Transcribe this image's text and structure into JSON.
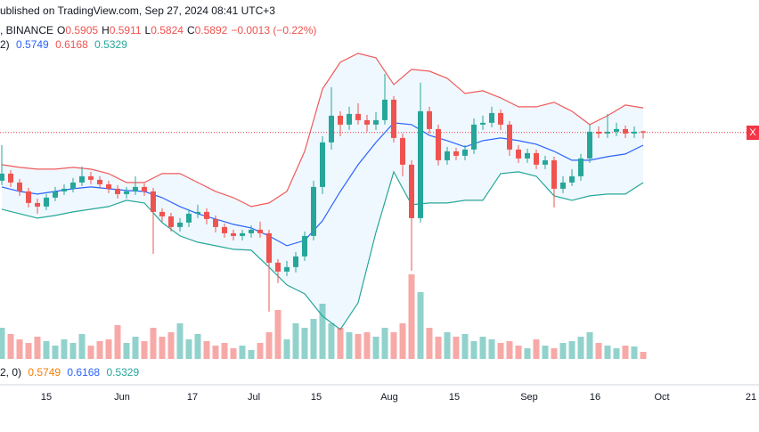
{
  "header": {
    "published": "ublished on TradingView.com, Sep 27, 2024 08:41 UTC+3",
    "symbol": ", BINANCE",
    "ohlc": [
      {
        "k": "O",
        "v": "0.5905"
      },
      {
        "k": "H",
        "v": "0.5911"
      },
      {
        "k": "L",
        "v": "0.5824"
      },
      {
        "k": "C",
        "v": "0.5892"
      }
    ],
    "change": "−0.0013 (−0.22%)",
    "bb_params": "2)",
    "bb_values": [
      "0.5749",
      "0.6168",
      "0.5329"
    ],
    "price_tag": "X"
  },
  "footer": {
    "params": "2, 0)",
    "values": [
      "0.5749",
      "0.6168",
      "0.5329"
    ]
  },
  "chart_data": {
    "type": "candlestick",
    "ylim": [
      0.3329,
      0.7379
    ],
    "last_price": 0.5892,
    "up_color": "#26a69a",
    "down_color": "#ef5350",
    "open": [
      0.535,
      0.543,
      0.533,
      0.523,
      0.51,
      0.506,
      0.516,
      0.523,
      0.526,
      0.533,
      0.54,
      0.536,
      0.531,
      0.526,
      0.52,
      0.523,
      0.528,
      0.523,
      0.5,
      0.495,
      0.483,
      0.488,
      0.498,
      0.5,
      0.492,
      0.483,
      0.476,
      0.473,
      0.476,
      0.48,
      0.476,
      0.443,
      0.433,
      0.438,
      0.45,
      0.473,
      0.528,
      0.578,
      0.608,
      0.598,
      0.61,
      0.603,
      0.598,
      0.603,
      0.626,
      0.583,
      0.553,
      0.493,
      0.613,
      0.593,
      0.558,
      0.568,
      0.563,
      0.57,
      0.598,
      0.6,
      0.611,
      0.598,
      0.57,
      0.56,
      0.566,
      0.553,
      0.558,
      0.526,
      0.533,
      0.54,
      0.56,
      0.59,
      0.588,
      0.59,
      0.593,
      0.588,
      0.5905
    ],
    "high": [
      0.575,
      0.547,
      0.537,
      0.527,
      0.515,
      0.52,
      0.528,
      0.531,
      0.538,
      0.551,
      0.545,
      0.54,
      0.535,
      0.53,
      0.528,
      0.54,
      0.532,
      0.527,
      0.504,
      0.499,
      0.493,
      0.503,
      0.508,
      0.504,
      0.496,
      0.487,
      0.48,
      0.48,
      0.485,
      0.489,
      0.48,
      0.447,
      0.445,
      0.455,
      0.478,
      0.535,
      0.585,
      0.64,
      0.613,
      0.618,
      0.622,
      0.609,
      0.612,
      0.655,
      0.63,
      0.588,
      0.558,
      0.645,
      0.618,
      0.598,
      0.573,
      0.572,
      0.575,
      0.605,
      0.608,
      0.618,
      0.615,
      0.602,
      0.575,
      0.571,
      0.57,
      0.563,
      0.562,
      0.54,
      0.548,
      0.565,
      0.598,
      0.596,
      0.61,
      0.6,
      0.597,
      0.596,
      0.5911
    ],
    "low": [
      0.53,
      0.528,
      0.518,
      0.505,
      0.498,
      0.502,
      0.512,
      0.519,
      0.522,
      0.529,
      0.531,
      0.526,
      0.521,
      0.515,
      0.515,
      0.519,
      0.518,
      0.453,
      0.489,
      0.478,
      0.478,
      0.483,
      0.493,
      0.486,
      0.477,
      0.471,
      0.468,
      0.468,
      0.471,
      0.471,
      0.388,
      0.42,
      0.428,
      0.432,
      0.445,
      0.468,
      0.52,
      0.57,
      0.585,
      0.592,
      0.598,
      0.59,
      0.592,
      0.598,
      0.578,
      0.54,
      0.434,
      0.488,
      0.588,
      0.552,
      0.553,
      0.558,
      0.558,
      0.565,
      0.592,
      0.595,
      0.592,
      0.563,
      0.555,
      0.555,
      0.548,
      0.548,
      0.505,
      0.521,
      0.529,
      0.535,
      0.555,
      0.583,
      0.583,
      0.585,
      0.583,
      0.583,
      0.5824
    ],
    "close": [
      0.543,
      0.533,
      0.523,
      0.51,
      0.506,
      0.516,
      0.523,
      0.526,
      0.533,
      0.54,
      0.536,
      0.531,
      0.526,
      0.52,
      0.523,
      0.528,
      0.523,
      0.5,
      0.495,
      0.483,
      0.488,
      0.498,
      0.5,
      0.492,
      0.483,
      0.476,
      0.473,
      0.476,
      0.48,
      0.476,
      0.443,
      0.433,
      0.438,
      0.45,
      0.473,
      0.528,
      0.578,
      0.608,
      0.598,
      0.61,
      0.603,
      0.598,
      0.603,
      0.626,
      0.583,
      0.553,
      0.493,
      0.613,
      0.593,
      0.558,
      0.568,
      0.563,
      0.57,
      0.598,
      0.6,
      0.611,
      0.598,
      0.57,
      0.56,
      0.566,
      0.553,
      0.558,
      0.526,
      0.533,
      0.54,
      0.56,
      0.59,
      0.588,
      0.59,
      0.593,
      0.588,
      0.59,
      0.5892
    ],
    "volume": [
      35,
      28,
      22,
      18,
      25,
      20,
      15,
      22,
      18,
      28,
      15,
      20,
      22,
      38,
      18,
      25,
      20,
      35,
      25,
      30,
      40,
      22,
      28,
      20,
      15,
      18,
      12,
      15,
      10,
      18,
      30,
      55,
      22,
      40,
      35,
      45,
      62,
      40,
      35,
      30,
      28,
      30,
      25,
      35,
      30,
      40,
      95,
      75,
      35,
      25,
      30,
      25,
      28,
      20,
      25,
      22,
      18,
      20,
      15,
      12,
      22,
      15,
      12,
      18,
      20,
      25,
      30,
      18,
      15,
      12,
      15,
      14,
      8
    ],
    "volume_lim": [
      0,
      400
    ],
    "bands": {
      "x": [
        0,
        2,
        4,
        6,
        8,
        10,
        12,
        14,
        16,
        18,
        20,
        22,
        24,
        26,
        28,
        30,
        32,
        34,
        36,
        38,
        40,
        42,
        44,
        46,
        48,
        50,
        52,
        54,
        56,
        58,
        60,
        62,
        64,
        66,
        68,
        70,
        72
      ],
      "series": [
        {
          "name": "upper",
          "color": "#f05a5a",
          "values": [
            0.553,
            0.55,
            0.548,
            0.548,
            0.55,
            0.548,
            0.543,
            0.533,
            0.533,
            0.543,
            0.543,
            0.533,
            0.523,
            0.516,
            0.506,
            0.51,
            0.523,
            0.568,
            0.638,
            0.668,
            0.678,
            0.673,
            0.643,
            0.66,
            0.658,
            0.65,
            0.633,
            0.636,
            0.628,
            0.618,
            0.618,
            0.623,
            0.613,
            0.598,
            0.608,
            0.62,
            0.6168
          ]
        },
        {
          "name": "basis",
          "color": "#2962ff",
          "values": [
            0.528,
            0.523,
            0.52,
            0.523,
            0.526,
            0.528,
            0.526,
            0.524,
            0.523,
            0.516,
            0.506,
            0.498,
            0.492,
            0.486,
            0.482,
            0.473,
            0.462,
            0.468,
            0.49,
            0.523,
            0.553,
            0.578,
            0.6,
            0.598,
            0.586,
            0.58,
            0.573,
            0.58,
            0.583,
            0.58,
            0.576,
            0.568,
            0.558,
            0.558,
            0.562,
            0.565,
            0.5749
          ]
        },
        {
          "name": "lower",
          "color": "#26a69a",
          "values": [
            0.503,
            0.498,
            0.493,
            0.496,
            0.5,
            0.503,
            0.506,
            0.513,
            0.51,
            0.488,
            0.473,
            0.466,
            0.462,
            0.458,
            0.457,
            0.438,
            0.418,
            0.408,
            0.383,
            0.368,
            0.398,
            0.477,
            0.545,
            0.508,
            0.51,
            0.51,
            0.513,
            0.513,
            0.543,
            0.545,
            0.54,
            0.518,
            0.513,
            0.518,
            0.52,
            0.52,
            0.5329
          ]
        }
      ]
    },
    "xticks": [
      {
        "value": 5,
        "label": "15"
      },
      {
        "value": 13.5,
        "label": "Jun"
      },
      {
        "value": 21.4,
        "label": "17"
      },
      {
        "value": 28.3,
        "label": "Jul"
      },
      {
        "value": 35.3,
        "label": "15"
      },
      {
        "value": 43.5,
        "label": "Aug"
      },
      {
        "value": 50.8,
        "label": "15"
      },
      {
        "value": 59.2,
        "label": "Sep"
      },
      {
        "value": 66.6,
        "label": "16"
      },
      {
        "value": 74.1,
        "label": "Oct"
      },
      {
        "value": 84.1,
        "label": "21"
      }
    ]
  }
}
